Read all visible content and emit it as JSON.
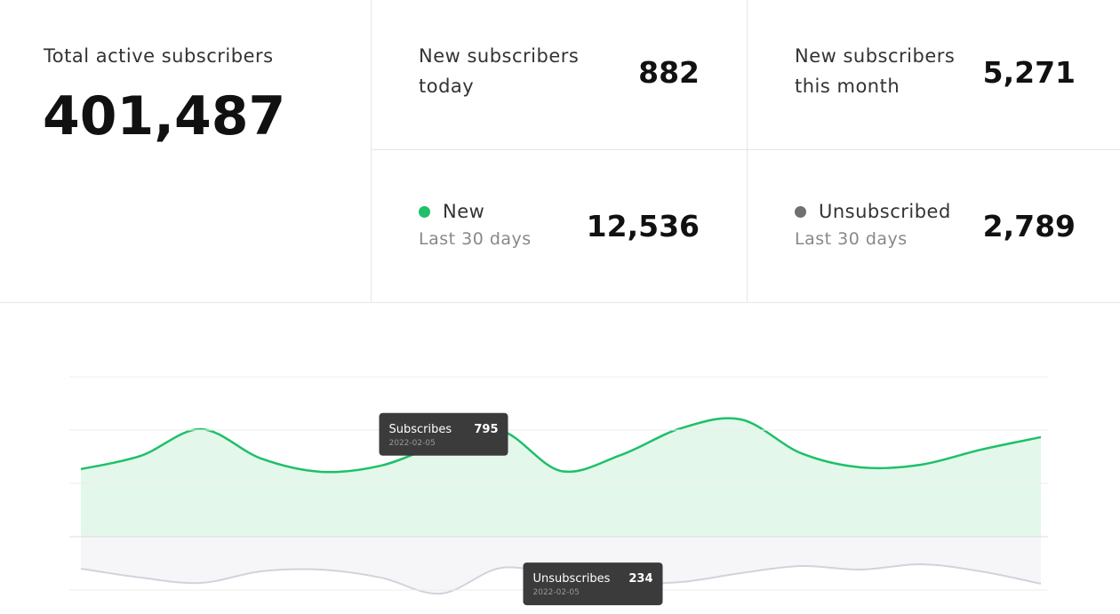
{
  "stats": {
    "total": {
      "label": "Total active subscribers",
      "value": "401,487"
    },
    "today": {
      "label": "New subscribers today",
      "value": "882"
    },
    "month": {
      "label": "New subscribers this month",
      "value": "5,271"
    },
    "new30": {
      "label": "New",
      "sublabel": "Last 30 days",
      "value": "12,536",
      "color": "#1ec06a"
    },
    "unsub30": {
      "label": "Unsubscribed",
      "sublabel": "Last 30 days",
      "value": "2,789",
      "color": "#707070"
    }
  },
  "chart_data": {
    "type": "area",
    "categories": [
      null,
      null,
      null,
      null,
      null,
      null,
      null,
      "2022-02-05",
      null,
      null,
      null,
      null,
      null,
      null,
      null,
      null,
      null
    ],
    "series": [
      {
        "name": "Subscribes",
        "color": "#1ec06a",
        "fill": "#e3f8ea",
        "direction": "up",
        "values": [
          507,
          607,
          807,
          587,
          487,
          533,
          693,
          795,
          493,
          613,
          813,
          880,
          627,
          520,
          540,
          653,
          747
        ]
      },
      {
        "name": "Unsubscribes",
        "color": "#d3d2db",
        "fill": "#f6f6f9",
        "direction": "down",
        "values": [
          240,
          307,
          347,
          260,
          247,
          307,
          427,
          234,
          293,
          347,
          340,
          273,
          220,
          247,
          207,
          260,
          353
        ]
      }
    ],
    "ylim": [
      -400,
      1200
    ],
    "yticks": [
      -400,
      0,
      400,
      800,
      1200
    ],
    "grid": true,
    "tooltips": [
      {
        "series": 0,
        "index": 7
      },
      {
        "series": 1,
        "index": 7
      }
    ]
  }
}
